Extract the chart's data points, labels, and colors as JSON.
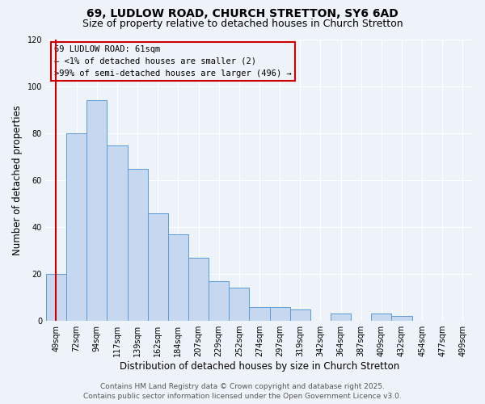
{
  "title": "69, LUDLOW ROAD, CHURCH STRETTON, SY6 6AD",
  "subtitle": "Size of property relative to detached houses in Church Stretton",
  "xlabel": "Distribution of detached houses by size in Church Stretton",
  "ylabel": "Number of detached properties",
  "bar_heights": [
    20,
    80,
    94,
    75,
    65,
    46,
    37,
    27,
    17,
    14,
    6,
    6,
    5,
    0,
    3,
    0,
    3,
    2,
    0,
    0
  ],
  "x_labels": [
    "49sqm",
    "72sqm",
    "94sqm",
    "117sqm",
    "139sqm",
    "162sqm",
    "184sqm",
    "207sqm",
    "229sqm",
    "252sqm",
    "274sqm",
    "297sqm",
    "319sqm",
    "342sqm",
    "364sqm",
    "387sqm",
    "409sqm",
    "432sqm",
    "454sqm",
    "477sqm",
    "499sqm"
  ],
  "bar_color": "#c5d8f0",
  "bar_edgecolor": "#5b9bd5",
  "ylim": [
    0,
    120
  ],
  "yticks": [
    0,
    20,
    40,
    60,
    80,
    100,
    120
  ],
  "marker_color": "#cc0000",
  "annotation_title": "69 LUDLOW ROAD: 61sqm",
  "annotation_line1": "← <1% of detached houses are smaller (2)",
  "annotation_line2": ">99% of semi-detached houses are larger (496) →",
  "annotation_box_edgecolor": "#cc0000",
  "background_color": "#eef3f9",
  "footer_line1": "Contains HM Land Registry data © Crown copyright and database right 2025.",
  "footer_line2": "Contains public sector information licensed under the Open Government Licence v3.0.",
  "title_fontsize": 10,
  "subtitle_fontsize": 9,
  "axis_label_fontsize": 8.5,
  "tick_fontsize": 7,
  "annotation_fontsize": 7.5,
  "footer_fontsize": 6.5
}
